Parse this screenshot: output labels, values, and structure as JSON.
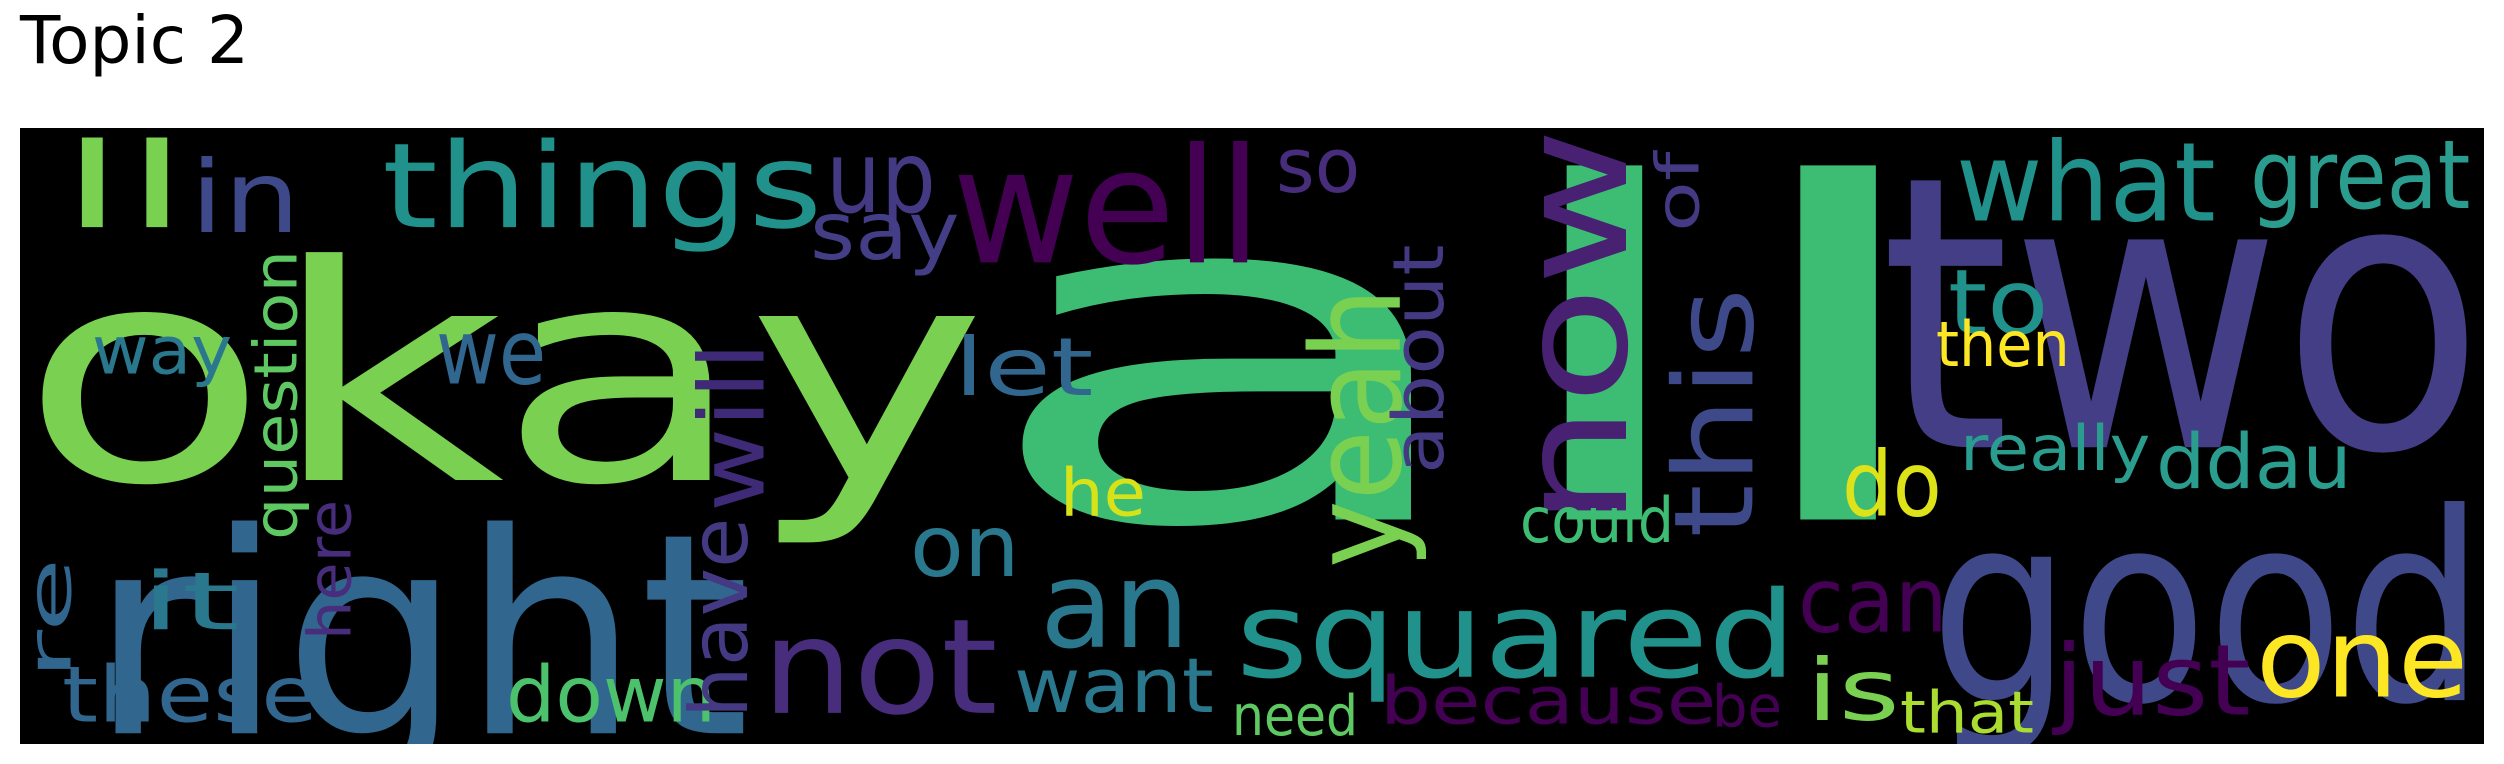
{
  "title": "Topic 2",
  "words": [
    {
      "text": "all"
    },
    {
      "text": "okay"
    },
    {
      "text": "two"
    },
    {
      "text": "right"
    },
    {
      "text": "good"
    },
    {
      "text": "squared"
    },
    {
      "text": "now"
    },
    {
      "text": "well"
    },
    {
      "text": "things"
    },
    {
      "text": "not"
    },
    {
      "text": "yeah"
    },
    {
      "text": "this"
    },
    {
      "text": "what"
    },
    {
      "text": "one"
    },
    {
      "text": "ll"
    },
    {
      "text": "an"
    },
    {
      "text": "great"
    },
    {
      "text": "these"
    },
    {
      "text": "down"
    },
    {
      "text": "want"
    },
    {
      "text": "just"
    },
    {
      "text": "we"
    },
    {
      "text": "will"
    },
    {
      "text": "is"
    },
    {
      "text": "do"
    },
    {
      "text": "on"
    },
    {
      "text": "can"
    },
    {
      "text": "have"
    },
    {
      "text": "up"
    },
    {
      "text": "in"
    },
    {
      "text": "question"
    },
    {
      "text": "so"
    },
    {
      "text": "say"
    },
    {
      "text": "let"
    },
    {
      "text": "about"
    },
    {
      "text": "to"
    },
    {
      "text": "because"
    },
    {
      "text": "ddau"
    },
    {
      "text": "it"
    },
    {
      "text": "re"
    },
    {
      "text": "way"
    },
    {
      "text": "here"
    },
    {
      "text": "could"
    },
    {
      "text": "need"
    },
    {
      "text": "really"
    },
    {
      "text": "that"
    },
    {
      "text": "of"
    },
    {
      "text": "he"
    },
    {
      "text": "then"
    },
    {
      "text": "be"
    }
  ]
}
